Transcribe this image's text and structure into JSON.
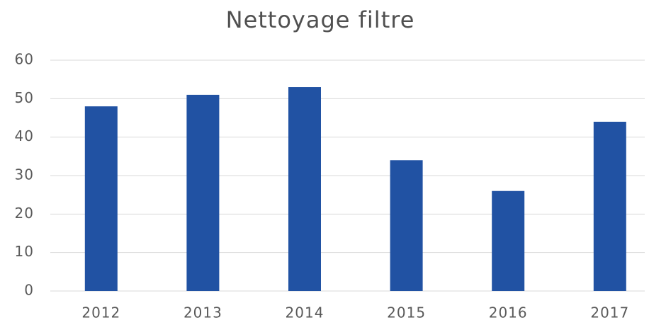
{
  "chart_data": {
    "type": "bar",
    "title": "Nettoyage filtre",
    "categories": [
      "2012",
      "2013",
      "2014",
      "2015",
      "2016",
      "2017"
    ],
    "values": [
      48,
      51,
      53,
      34,
      26,
      44
    ],
    "color": "#2152a3",
    "ylim": [
      0,
      60
    ],
    "yticks": [
      0,
      10,
      20,
      30,
      40,
      50,
      60
    ],
    "grid": true
  }
}
